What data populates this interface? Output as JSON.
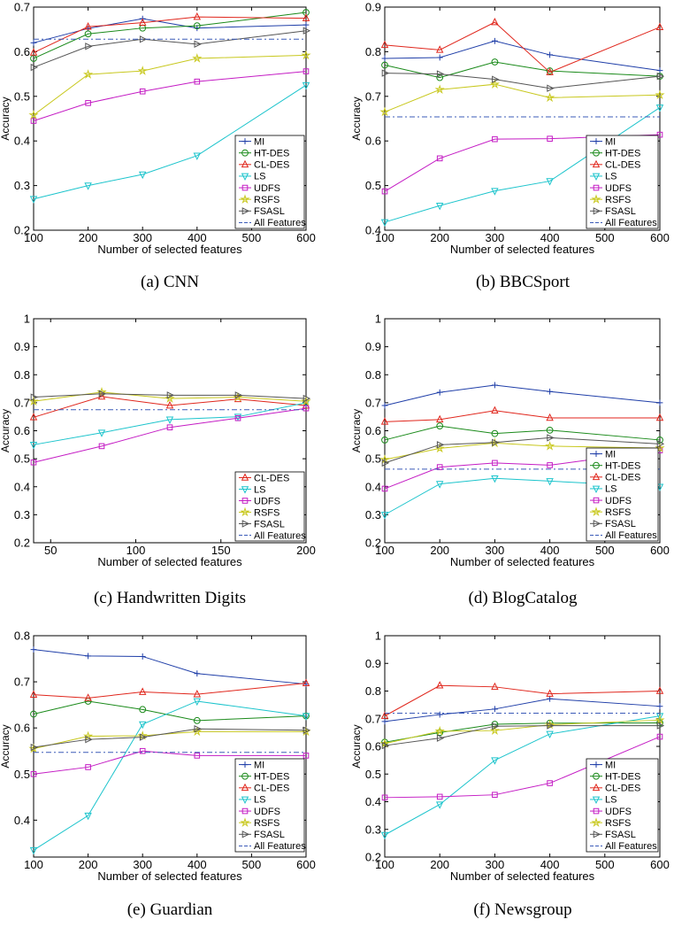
{
  "series_styles": {
    "MI": {
      "color": "#1f3ea8",
      "marker": "plus"
    },
    "HT-DES": {
      "color": "#1a8a1a",
      "marker": "circle"
    },
    "CL-DES": {
      "color": "#e0261c",
      "marker": "triangle"
    },
    "LS": {
      "color": "#1cc4cc",
      "marker": "triangle-down"
    },
    "UDFS": {
      "color": "#c41cc4",
      "marker": "square"
    },
    "RSFS": {
      "color": "#c8c81e",
      "marker": "star"
    },
    "FSASL": {
      "color": "#555555",
      "marker": "triangle-right"
    },
    "All Features": {
      "color": "#3b5bb8",
      "marker": "dashdot"
    }
  },
  "chart_data": [
    {
      "type": "line",
      "caption": "(a) CNN",
      "xlabel": "Number of selected features",
      "ylabel": "Accuracy",
      "x": [
        100,
        200,
        300,
        400,
        600
      ],
      "xlim": [
        100,
        600
      ],
      "xticks": [
        "100",
        "200",
        "300",
        "400",
        "500",
        "600"
      ],
      "ylim": [
        0.2,
        0.7
      ],
      "yticks": [
        "0.2",
        "0.3",
        "0.4",
        "0.5",
        "0.6",
        "0.7"
      ],
      "series": [
        {
          "name": "MI",
          "values": [
            0.62,
            0.652,
            0.674,
            0.653,
            0.66
          ]
        },
        {
          "name": "HT-DES",
          "values": [
            0.585,
            0.64,
            0.653,
            0.658,
            0.688
          ]
        },
        {
          "name": "CL-DES",
          "values": [
            0.598,
            0.656,
            0.665,
            0.678,
            0.675
          ]
        },
        {
          "name": "LS",
          "values": [
            0.27,
            0.3,
            0.325,
            0.367,
            0.525
          ]
        },
        {
          "name": "UDFS",
          "values": [
            0.445,
            0.485,
            0.511,
            0.533,
            0.556
          ]
        },
        {
          "name": "RSFS",
          "values": [
            0.458,
            0.549,
            0.557,
            0.585,
            0.592
          ]
        },
        {
          "name": "FSASL",
          "values": [
            0.565,
            0.612,
            0.628,
            0.617,
            0.647
          ]
        },
        {
          "name": "All Features",
          "values": [
            0.628,
            0.628,
            0.628,
            0.628,
            0.628
          ]
        }
      ],
      "legend": [
        "MI",
        "HT-DES",
        "CL-DES",
        "LS",
        "UDFS",
        "RSFS",
        "FSASL",
        "All Features"
      ]
    },
    {
      "type": "line",
      "caption": "(b) BBCSport",
      "xlabel": "Number of selected features",
      "ylabel": "Accuracy",
      "x": [
        100,
        200,
        300,
        400,
        600
      ],
      "xlim": [
        100,
        600
      ],
      "xticks": [
        "100",
        "200",
        "300",
        "400",
        "500",
        "600"
      ],
      "ylim": [
        0.4,
        0.9
      ],
      "yticks": [
        "0.4",
        "0.5",
        "0.6",
        "0.7",
        "0.8",
        "0.9"
      ],
      "series": [
        {
          "name": "MI",
          "values": [
            0.785,
            0.787,
            0.824,
            0.793,
            0.758
          ]
        },
        {
          "name": "HT-DES",
          "values": [
            0.77,
            0.742,
            0.777,
            0.757,
            0.745
          ]
        },
        {
          "name": "CL-DES",
          "values": [
            0.815,
            0.804,
            0.866,
            0.754,
            0.855
          ]
        },
        {
          "name": "LS",
          "values": [
            0.418,
            0.455,
            0.488,
            0.51,
            0.675
          ]
        },
        {
          "name": "UDFS",
          "values": [
            0.487,
            0.561,
            0.604,
            0.605,
            0.614
          ]
        },
        {
          "name": "RSFS",
          "values": [
            0.665,
            0.715,
            0.727,
            0.697,
            0.703
          ]
        },
        {
          "name": "FSASL",
          "values": [
            0.752,
            0.75,
            0.738,
            0.718,
            0.745
          ]
        },
        {
          "name": "All Features",
          "values": [
            0.654,
            0.654,
            0.654,
            0.654,
            0.654
          ]
        }
      ],
      "legend": [
        "MI",
        "HT-DES",
        "CL-DES",
        "LS",
        "UDFS",
        "RSFS",
        "FSASL",
        "All Features"
      ]
    },
    {
      "type": "line",
      "caption": "(c) Handwritten Digits",
      "xlabel": "Number of selected features",
      "ylabel": "Accuracy",
      "x": [
        40,
        80,
        120,
        160,
        200
      ],
      "xlim": [
        40,
        200
      ],
      "xticks": [
        "50",
        "100",
        "150",
        "200"
      ],
      "ylim": [
        0.2,
        1.0
      ],
      "yticks": [
        "0.2",
        "0.3",
        "0.4",
        "0.5",
        "0.6",
        "0.7",
        "0.8",
        "0.9",
        "1"
      ],
      "series": [
        {
          "name": "CL-DES",
          "values": [
            0.648,
            0.722,
            0.69,
            0.713,
            0.69
          ]
        },
        {
          "name": "LS",
          "values": [
            0.55,
            0.593,
            0.64,
            0.65,
            0.7
          ]
        },
        {
          "name": "UDFS",
          "values": [
            0.487,
            0.545,
            0.612,
            0.645,
            0.68
          ]
        },
        {
          "name": "RSFS",
          "values": [
            0.705,
            0.738,
            0.715,
            0.72,
            0.705
          ]
        },
        {
          "name": "FSASL",
          "values": [
            0.72,
            0.732,
            0.727,
            0.727,
            0.715
          ]
        },
        {
          "name": "All Features",
          "values": [
            0.675,
            0.675,
            0.675,
            0.675,
            0.675
          ]
        }
      ],
      "legend": [
        "CL-DES",
        "LS",
        "UDFS",
        "RSFS",
        "FSASL",
        "All Features"
      ]
    },
    {
      "type": "line",
      "caption": "(d) BlogCatalog",
      "xlabel": "Number of selected features",
      "ylabel": "Accuracy",
      "x": [
        100,
        200,
        300,
        400,
        600
      ],
      "xlim": [
        100,
        600
      ],
      "xticks": [
        "100",
        "200",
        "300",
        "400",
        "500",
        "600"
      ],
      "ylim": [
        0.2,
        1.0
      ],
      "yticks": [
        "0.2",
        "0.3",
        "0.4",
        "0.5",
        "0.6",
        "0.7",
        "0.8",
        "0.9",
        "1"
      ],
      "series": [
        {
          "name": "MI",
          "values": [
            0.69,
            0.737,
            0.763,
            0.74,
            0.7
          ]
        },
        {
          "name": "HT-DES",
          "values": [
            0.567,
            0.617,
            0.59,
            0.602,
            0.567
          ]
        },
        {
          "name": "CL-DES",
          "values": [
            0.632,
            0.64,
            0.672,
            0.646,
            0.646
          ]
        },
        {
          "name": "LS",
          "values": [
            0.3,
            0.41,
            0.43,
            0.42,
            0.4
          ]
        },
        {
          "name": "UDFS",
          "values": [
            0.393,
            0.47,
            0.485,
            0.477,
            0.53
          ]
        },
        {
          "name": "RSFS",
          "values": [
            0.497,
            0.537,
            0.556,
            0.545,
            0.538
          ]
        },
        {
          "name": "FSASL",
          "values": [
            0.485,
            0.55,
            0.558,
            0.575,
            0.553
          ]
        },
        {
          "name": "All Features",
          "values": [
            0.463,
            0.463,
            0.463,
            0.463,
            0.463
          ]
        }
      ],
      "legend": [
        "MI",
        "HT-DES",
        "CL-DES",
        "LS",
        "UDFS",
        "RSFS",
        "FSASL",
        "All Features"
      ]
    },
    {
      "type": "line",
      "caption": "(e) Guardian",
      "xlabel": "Number of selected features",
      "ylabel": "Accuracy",
      "x": [
        100,
        200,
        300,
        400,
        600
      ],
      "xlim": [
        100,
        600
      ],
      "xticks": [
        "100",
        "200",
        "300",
        "400",
        "500",
        "600"
      ],
      "ylim": [
        0.32,
        0.8
      ],
      "yticks": [
        "0.4",
        "0.5",
        "0.6",
        "0.7",
        "0.8"
      ],
      "ytick_values": [
        0.4,
        0.5,
        0.6,
        0.7,
        0.8
      ],
      "series": [
        {
          "name": "MI",
          "values": [
            0.77,
            0.756,
            0.755,
            0.718,
            0.695
          ]
        },
        {
          "name": "HT-DES",
          "values": [
            0.63,
            0.658,
            0.64,
            0.616,
            0.626
          ]
        },
        {
          "name": "CL-DES",
          "values": [
            0.672,
            0.665,
            0.678,
            0.673,
            0.697
          ]
        },
        {
          "name": "LS",
          "values": [
            0.335,
            0.41,
            0.608,
            0.658,
            0.626
          ]
        },
        {
          "name": "UDFS",
          "values": [
            0.5,
            0.515,
            0.55,
            0.54,
            0.54
          ]
        },
        {
          "name": "RSFS",
          "values": [
            0.555,
            0.582,
            0.583,
            0.592,
            0.592
          ]
        },
        {
          "name": "FSASL",
          "values": [
            0.558,
            0.575,
            0.58,
            0.598,
            0.595
          ]
        },
        {
          "name": "All Features",
          "values": [
            0.547,
            0.547,
            0.547,
            0.547,
            0.547
          ]
        }
      ],
      "legend": [
        "MI",
        "HT-DES",
        "CL-DES",
        "LS",
        "UDFS",
        "RSFS",
        "FSASL",
        "All Features"
      ]
    },
    {
      "type": "line",
      "caption": "(f) Newsgroup",
      "xlabel": "Number of selected features",
      "ylabel": "Accuracy",
      "x": [
        100,
        200,
        300,
        400,
        600
      ],
      "xlim": [
        100,
        600
      ],
      "xticks": [
        "100",
        "200",
        "300",
        "400",
        "500",
        "600"
      ],
      "ylim": [
        0.2,
        1.0
      ],
      "yticks": [
        "0.2",
        "0.3",
        "0.4",
        "0.5",
        "0.6",
        "0.7",
        "0.8",
        "0.9",
        "1"
      ],
      "series": [
        {
          "name": "MI",
          "values": [
            0.69,
            0.715,
            0.735,
            0.772,
            0.745
          ]
        },
        {
          "name": "HT-DES",
          "values": [
            0.615,
            0.65,
            0.68,
            0.684,
            0.685
          ]
        },
        {
          "name": "CL-DES",
          "values": [
            0.71,
            0.82,
            0.815,
            0.79,
            0.8
          ]
        },
        {
          "name": "LS",
          "values": [
            0.28,
            0.39,
            0.55,
            0.645,
            0.71
          ]
        },
        {
          "name": "UDFS",
          "values": [
            0.415,
            0.418,
            0.425,
            0.467,
            0.635
          ]
        },
        {
          "name": "RSFS",
          "values": [
            0.61,
            0.655,
            0.657,
            0.678,
            0.695
          ]
        },
        {
          "name": "FSASL",
          "values": [
            0.603,
            0.63,
            0.673,
            0.675,
            0.675
          ]
        },
        {
          "name": "All Features",
          "values": [
            0.72,
            0.72,
            0.72,
            0.72,
            0.72
          ]
        }
      ],
      "legend": [
        "MI",
        "HT-DES",
        "CL-DES",
        "LS",
        "UDFS",
        "RSFS",
        "FSASL",
        "All Features"
      ]
    }
  ]
}
